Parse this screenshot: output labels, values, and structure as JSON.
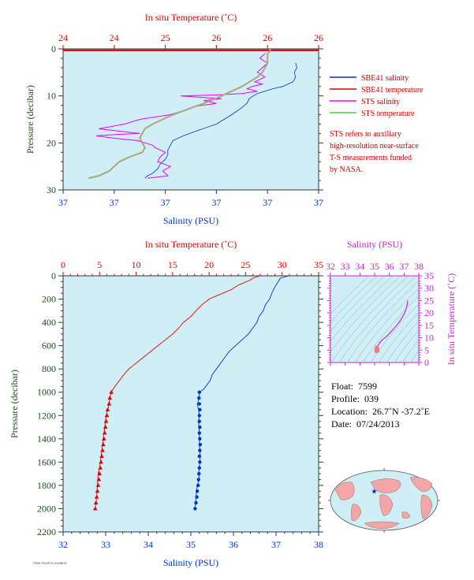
{
  "colors": {
    "plot_bg": "#cfeef6",
    "salinity": "#0033cc",
    "temperature": "#e00000",
    "sts_salinity": "#ee00ee",
    "sts_temperature": "#a8a878",
    "sts_temperature_legend": "#44cc44",
    "pressure_axis": "#1a4d1a",
    "inset_axis": "#cc22cc"
  },
  "chart_data": [
    {
      "type": "line",
      "panel": "near-surface",
      "title": "",
      "top_xlabel": "In situ Temperature (˚C)",
      "top_xticks": [
        "24",
        "24",
        "25",
        "26",
        "26",
        "26"
      ],
      "bottom_xlabel": "Salinity (PSU)",
      "bottom_xticks": [
        "37",
        "37",
        "37",
        "37",
        "37",
        "37"
      ],
      "ylabel": "Pressure (decibar)",
      "yticks": [
        "0",
        "10",
        "20",
        "30"
      ],
      "ylim": [
        0,
        30
      ],
      "series": [
        {
          "name": "SHE41 salinity",
          "x_fraction": [
            0.91,
            0.915,
            0.905,
            0.91,
            0.9,
            0.88,
            0.86,
            0.82,
            0.79,
            0.76,
            0.73,
            0.72,
            0.7,
            0.66,
            0.6,
            0.52,
            0.47,
            0.43,
            0.42,
            0.41,
            0.41,
            0.4,
            0.38,
            0.37,
            0.35,
            0.33,
            0.32
          ],
          "y": [
            3,
            4,
            5,
            6,
            7,
            7.5,
            8,
            8.5,
            9,
            9.5,
            10.5,
            11.5,
            12.5,
            14,
            16,
            17.5,
            18.5,
            19.5,
            20.5,
            21.5,
            22.5,
            23.5,
            24.5,
            25.5,
            26.5,
            27,
            27.5
          ]
        },
        {
          "name": "SHE41 temperature",
          "x_fraction": [
            0,
            1
          ],
          "y": [
            0.3,
            0.3
          ]
        },
        {
          "name": "STS salinity",
          "x_fraction": [
            0.79,
            0.77,
            0.8,
            0.78,
            0.76,
            0.79,
            0.75,
            0.78,
            0.74,
            0.72,
            0.76,
            0.7,
            0.6,
            0.46,
            0.62,
            0.55,
            0.6,
            0.52,
            0.48,
            0.42,
            0.3,
            0.24,
            0.14,
            0.3,
            0.21,
            0.13,
            0.2,
            0.29,
            0.32,
            0.35,
            0.36,
            0.4,
            0.38,
            0.37,
            0.42,
            0.39,
            0.41,
            0.33
          ],
          "y": [
            1,
            2,
            3,
            4,
            5,
            6,
            7,
            7.5,
            8,
            8.5,
            9,
            9.5,
            9.8,
            10,
            10.6,
            11,
            11.6,
            12.2,
            13,
            14,
            15,
            16,
            17,
            18,
            18.2,
            18.5,
            19,
            19.5,
            20,
            20.5,
            21,
            22,
            23,
            24,
            25,
            26,
            27,
            27.5
          ]
        },
        {
          "name": "STS temperature",
          "x_fraction": [
            0.81,
            0.81,
            0.8,
            0.8,
            0.79,
            0.78,
            0.76,
            0.7,
            0.66,
            0.62,
            0.58,
            0.53,
            0.48,
            0.43,
            0.35,
            0.32,
            0.31,
            0.3,
            0.31,
            0.32,
            0.31,
            0.26,
            0.22,
            0.2,
            0.18,
            0.14,
            0.1
          ],
          "y": [
            0,
            0.5,
            1,
            3,
            4,
            5,
            6,
            8,
            9,
            10,
            11,
            12,
            13,
            14,
            16,
            17,
            18,
            19,
            20,
            21,
            22,
            23,
            24,
            25,
            26,
            27,
            27.5
          ]
        }
      ]
    },
    {
      "type": "line",
      "panel": "full-profile",
      "title": "",
      "top_xlabel": "In situ Temperature (˚C)",
      "top_xlim": [
        0,
        35
      ],
      "top_xticks": [
        "0",
        "5",
        "10",
        "15",
        "20",
        "25",
        "30",
        "35"
      ],
      "bottom_xlabel": "Salinity (PSU)",
      "bottom_xlim": [
        32,
        38
      ],
      "bottom_xticks": [
        "32",
        "33",
        "34",
        "35",
        "36",
        "37",
        "38"
      ],
      "ylabel": "Pressure (decibar)",
      "ylim": [
        0,
        2200
      ],
      "yticks": [
        "0",
        "200",
        "400",
        "600",
        "800",
        "1000",
        "1200",
        "1400",
        "1600",
        "1800",
        "2000",
        "2200"
      ],
      "series": [
        {
          "name": "salinity",
          "x": [
            37.3,
            37.1,
            37.05,
            37.0,
            36.95,
            36.9,
            36.85,
            36.75,
            36.7,
            36.6,
            36.55,
            36.45,
            36.35,
            36.2,
            36.05,
            35.9,
            35.8,
            35.7,
            35.6,
            35.5,
            35.45,
            35.35,
            35.3,
            35.2,
            35.2,
            35.15,
            35.18,
            35.2,
            35.18,
            35.2,
            35.2,
            35.22,
            35.2,
            35.18,
            35.2,
            35.15,
            35.12,
            35.1
          ],
          "y": [
            0,
            20,
            50,
            80,
            110,
            150,
            200,
            250,
            300,
            350,
            400,
            450,
            500,
            550,
            600,
            650,
            700,
            750,
            800,
            850,
            900,
            950,
            975,
            1000,
            1050,
            1100,
            1150,
            1200,
            1250,
            1350,
            1450,
            1550,
            1650,
            1700,
            1750,
            1800,
            1900,
            2000
          ]
        },
        {
          "name": "temperature",
          "x": [
            27,
            26,
            25.5,
            24,
            23,
            21.5,
            20,
            19,
            18.2,
            17.5,
            16.5,
            15.8,
            15,
            14,
            13,
            12,
            11,
            10,
            9,
            8.3,
            7.7,
            7.1,
            6.6,
            6.6,
            6.4,
            6.3,
            6.1,
            5.9,
            5.8,
            5.7,
            5.5,
            5.3,
            5.1,
            5.0,
            4.8,
            4.7,
            4.6,
            4.4
          ],
          "y": [
            0,
            20,
            40,
            80,
            120,
            160,
            200,
            250,
            300,
            350,
            400,
            450,
            500,
            550,
            600,
            650,
            700,
            750,
            800,
            850,
            900,
            950,
            1000,
            1000,
            1050,
            1100,
            1150,
            1200,
            1250,
            1300,
            1400,
            1500,
            1600,
            1650,
            1700,
            1800,
            1900,
            2000
          ]
        }
      ],
      "profile_markers": {
        "pressure": [
          1000,
          1050,
          1100,
          1150,
          1200,
          1250,
          1300,
          1350,
          1400,
          1450,
          1500,
          1550,
          1600,
          1650,
          1700,
          1750,
          1800,
          1850,
          1900,
          1950,
          2000
        ],
        "salinity": [
          35.2,
          35.19,
          35.2,
          35.21,
          35.2,
          35.2,
          35.21,
          35.2,
          35.21,
          35.22,
          35.21,
          35.2,
          35.21,
          35.2,
          35.19,
          35.18,
          35.17,
          35.15,
          35.14,
          35.12,
          35.1
        ],
        "temperature": [
          6.6,
          6.4,
          6.3,
          6.1,
          6.0,
          5.9,
          5.8,
          5.7,
          5.6,
          5.5,
          5.4,
          5.3,
          5.2,
          5.1,
          5.0,
          4.9,
          4.8,
          4.7,
          4.6,
          4.5,
          4.4
        ]
      }
    },
    {
      "type": "scatter",
      "panel": "t-s-inset",
      "title": "",
      "xlabel": "Salinity (PSU)",
      "xlim": [
        32,
        38
      ],
      "xticks": [
        "32",
        "33",
        "34",
        "35",
        "36",
        "37",
        "38"
      ],
      "ylabel": "In situ Temperature (˚C)",
      "ylim": [
        0,
        35
      ],
      "yticks": [
        "0",
        "5",
        "10",
        "15",
        "20",
        "25",
        "30",
        "35"
      ],
      "series": [
        {
          "name": "profile",
          "x": [
            37.25,
            37.2,
            37.1,
            37.0,
            36.85,
            36.7,
            36.5,
            36.2,
            35.9,
            35.7,
            35.5,
            35.35,
            35.25,
            35.2
          ],
          "y": [
            25,
            23,
            21,
            19.5,
            18,
            16.5,
            15,
            13,
            11,
            10,
            9,
            8,
            7,
            6.5
          ]
        },
        {
          "name": "deep cluster",
          "x": [
            35.15,
            35.2,
            35.12,
            35.18,
            35.1,
            35.22,
            35.16,
            35.14,
            35.19,
            35.11
          ],
          "y": [
            6.2,
            5.8,
            5.5,
            5.2,
            5.0,
            4.8,
            4.6,
            6.0,
            5.3,
            4.5
          ]
        }
      ]
    }
  ],
  "legend": {
    "items": [
      {
        "label": "SBE41 salinity",
        "color": "#0033cc"
      },
      {
        "label": "SBE41 temperature",
        "color": "#e00000"
      },
      {
        "label": "STS salinity",
        "color": "#ee00ee"
      },
      {
        "label": "STS temperature",
        "color": "#44cc44"
      }
    ],
    "note_lines": [
      "STS refers to auxiliary",
      "high-resolution near-surface",
      "T-S measurements funded",
      "by NASA."
    ]
  },
  "info": {
    "float_label": "Float:",
    "float_value": "7599",
    "profile_label": "Profile:",
    "profile_value": "039",
    "location_label": "Location:",
    "location_value": "26.7˚N  -37.2˚E",
    "date_label": "Date:",
    "date_value": "07/24/2013"
  },
  "map": {
    "marker_icon": "star-icon",
    "marker_lat": 26.7,
    "marker_lon": -37.2
  },
  "footer_code": "P599 P39/P13 1098878"
}
